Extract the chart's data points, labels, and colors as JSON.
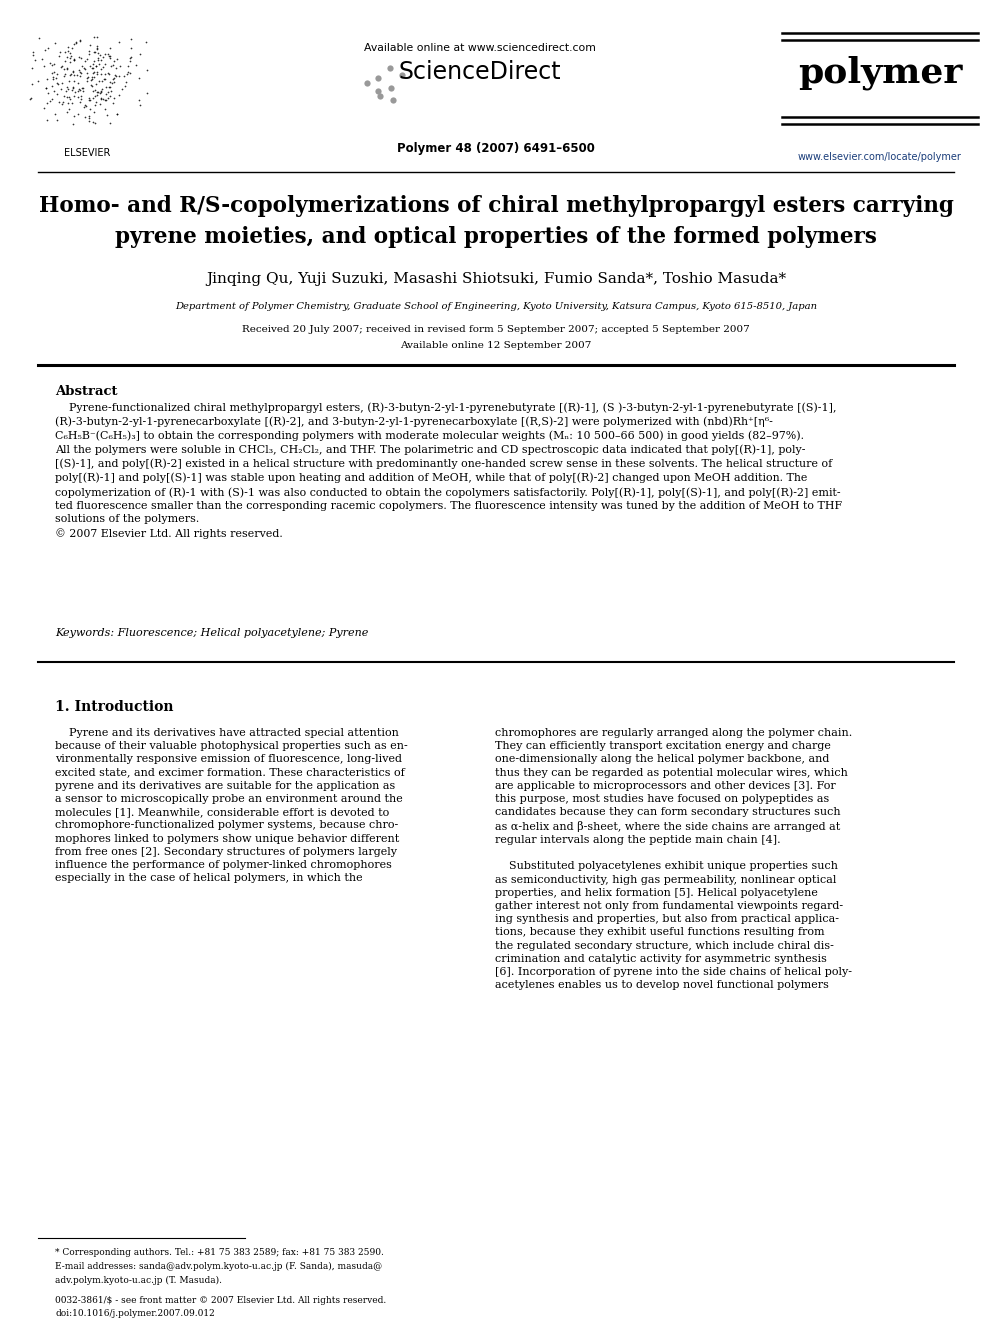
{
  "background_color": "#ffffff",
  "page_width": 9.92,
  "page_height": 13.23,
  "dpi": 100,
  "header": {
    "available_online_text": "Available online at www.sciencedirect.com",
    "sciencedirect_text": "ScienceDirect",
    "journal_name": "polymer",
    "journal_info": "Polymer 48 (2007) 6491–6500",
    "journal_url": "www.elsevier.com/locate/polymer"
  },
  "title_line1": "Homo- and R/S-copolymerizations of chiral methylpropargyl esters carrying",
  "title_line2": "pyrene moieties, and optical properties of the formed polymers",
  "authors": "Jinqing Qu, Yuji Suzuki, Masashi Shiotsuki, Fumio Sanda*, Toshio Masuda*",
  "affiliation": "Department of Polymer Chemistry, Graduate School of Engineering, Kyoto University, Katsura Campus, Kyoto 615-8510, Japan",
  "received": "Received 20 July 2007; received in revised form 5 September 2007; accepted 5 September 2007",
  "available_online": "Available online 12 September 2007",
  "abstract_title": "Abstract",
  "abstract_body": "    Pyrene-functionalized chiral methylpropargyl esters, (R)-3-butyn-2-yl-1-pyrenebutyrate [(R)-1], (S )-3-butyn-2-yl-1-pyrenebutyrate [(S)-1],\n(R)-3-butyn-2-yl-1-pyrenecarboxylate [(R)-2], and 3-butyn-2-yl-1-pyrenecarboxylate [(R,S)-2] were polymerized with (nbd)Rh⁺[η⁶-\nC₆H₅B⁻(C₆H₅)₃] to obtain the corresponding polymers with moderate molecular weights (Mₙ: 10 500–66 500) in good yields (82–97%).\nAll the polymers were soluble in CHCl₃, CH₂Cl₂, and THF. The polarimetric and CD spectroscopic data indicated that poly[(R)-1], poly-\n[(S)-1], and poly[(R)-2] existed in a helical structure with predominantly one-handed screw sense in these solvents. The helical structure of\npoly[(R)-1] and poly[(S)-1] was stable upon heating and addition of MeOH, while that of poly[(R)-2] changed upon MeOH addition. The\ncopolymerization of (R)-1 with (S)-1 was also conducted to obtain the copolymers satisfactorily. Poly[(R)-1], poly[(S)-1], and poly[(R)-2] emit-\nted fluorescence smaller than the corresponding racemic copolymers. The fluorescence intensity was tuned by the addition of MeOH to THF\nsolutions of the polymers.\n© 2007 Elsevier Ltd. All rights reserved.",
  "keywords": "Keywords: Fluorescence; Helical polyacetylene; Pyrene",
  "intro_title": "1. Introduction",
  "intro_col1": "    Pyrene and its derivatives have attracted special attention\nbecause of their valuable photophysical properties such as en-\nvironmentally responsive emission of fluorescence, long-lived\nexcited state, and excimer formation. These characteristics of\npyrene and its derivatives are suitable for the application as\na sensor to microscopically probe an environment around the\nmolecules [1]. Meanwhile, considerable effort is devoted to\nchromophore-functionalized polymer systems, because chro-\nmophores linked to polymers show unique behavior different\nfrom free ones [2]. Secondary structures of polymers largely\ninfluence the performance of polymer-linked chromophores\nespecially in the case of helical polymers, in which the",
  "intro_col2": "chromophores are regularly arranged along the polymer chain.\nThey can efficiently transport excitation energy and charge\none-dimensionally along the helical polymer backbone, and\nthus they can be regarded as potential molecular wires, which\nare applicable to microprocessors and other devices [3]. For\nthis purpose, most studies have focused on polypeptides as\ncandidates because they can form secondary structures such\nas α-helix and β-sheet, where the side chains are arranged at\nregular intervals along the peptide main chain [4].\n\n    Substituted polyacetylenes exhibit unique properties such\nas semiconductivity, high gas permeability, nonlinear optical\nproperties, and helix formation [5]. Helical polyacetylene\ngather interest not only from fundamental viewpoints regard-\ning synthesis and properties, but also from practical applica-\ntions, because they exhibit useful functions resulting from\nthe regulated secondary structure, which include chiral dis-\ncrimination and catalytic activity for asymmetric synthesis\n[6]. Incorporation of pyrene into the side chains of helical poly-\nacetylenes enables us to develop novel functional polymers",
  "footnote_line1": "* Corresponding authors. Tel.: +81 75 383 2589; fax: +81 75 383 2590.",
  "footnote_line2": "E-mail addresses: sanda@adv.polym.kyoto-u.ac.jp (F. Sanda), masuda@",
  "footnote_line3": "adv.polym.kyoto-u.ac.jp (T. Masuda).",
  "footer_issn": "0032-3861/$ - see front matter © 2007 Elsevier Ltd. All rights reserved.",
  "footer_doi": "doi:10.1016/j.polymer.2007.09.012"
}
